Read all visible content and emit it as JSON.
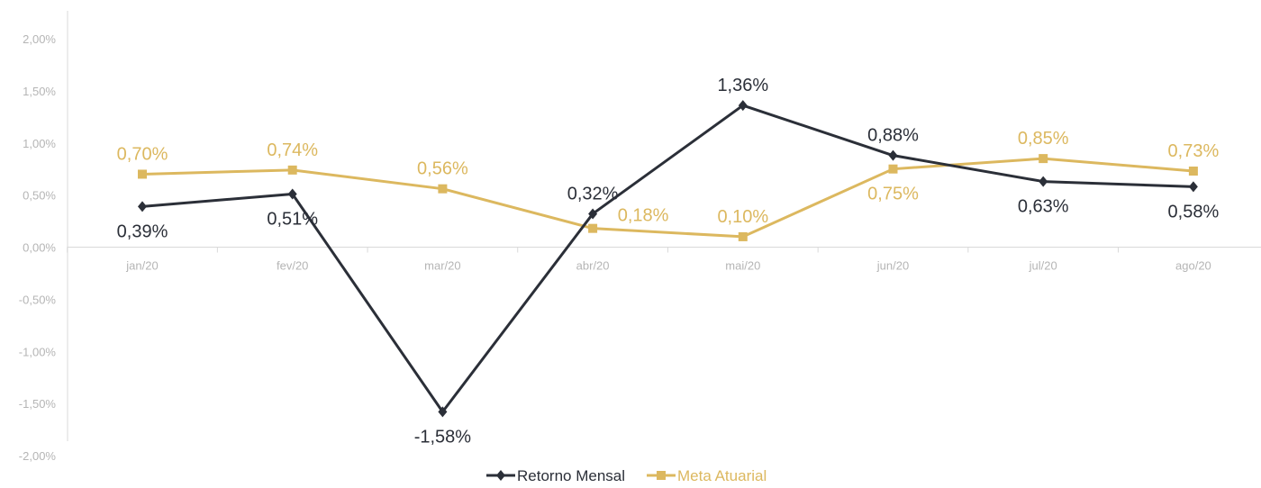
{
  "chart_data": {
    "type": "line",
    "categories": [
      "jan/20",
      "fev/20",
      "mar/20",
      "abr/20",
      "mai/20",
      "jun/20",
      "jul/20",
      "ago/20"
    ],
    "ylim": [
      -2.0,
      2.0
    ],
    "yticks": [
      2.0,
      1.5,
      1.0,
      0.5,
      0.0,
      -0.5,
      -1.0,
      -1.5,
      -2.0
    ],
    "ytick_labels": [
      "2,00%",
      "1,50%",
      "1,00%",
      "0,50%",
      "0,00%",
      "-0,50%",
      "-1,00%",
      "-1,50%",
      "-2,00%"
    ],
    "grid": false,
    "legend_position": "bottom",
    "series": [
      {
        "name": "Retorno Mensal",
        "color": "#2b2f38",
        "marker": "diamond",
        "values": [
          0.39,
          0.51,
          -1.58,
          0.32,
          1.36,
          0.88,
          0.63,
          0.58
        ],
        "labels": [
          "0,39%",
          "0,51%",
          "-1,58%",
          "0,32%",
          "1,36%",
          "0,88%",
          "0,63%",
          "0,58%"
        ],
        "label_side": [
          "below",
          "below",
          "below",
          "above",
          "above",
          "above",
          "below",
          "below"
        ]
      },
      {
        "name": "Meta Atuarial",
        "color": "#dcb85f",
        "marker": "square",
        "values": [
          0.7,
          0.74,
          0.56,
          0.18,
          0.1,
          0.75,
          0.85,
          0.73
        ],
        "labels": [
          "0,70%",
          "0,74%",
          "0,56%",
          "0,18%",
          "0,10%",
          "0,75%",
          "0,85%",
          "0,73%"
        ],
        "label_side": [
          "above",
          "above",
          "above",
          "right",
          "above",
          "below",
          "above",
          "above"
        ]
      }
    ]
  }
}
